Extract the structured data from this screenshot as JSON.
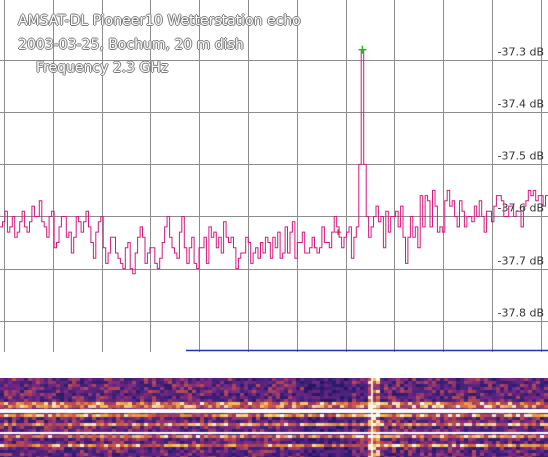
{
  "header": {
    "title": "AMSAT-DL Pioneer10 Wetterstation echo",
    "station": "2003-03-25, Bochum, 20 m dish",
    "frequency": "Frequency 2.3 GHz"
  },
  "colors": {
    "trace": "#d4187f",
    "grid": "#8c8c8c",
    "marker": "#22bb22",
    "baseline": "#2233aa",
    "axis_label": "#333333"
  },
  "chart_data": {
    "type": "line",
    "ylim": [
      -37.85,
      -37.2
    ],
    "y_ticks": [
      {
        "value": -37.3,
        "label": "-37.3 dB"
      },
      {
        "value": -37.4,
        "label": "-37.4 dB"
      },
      {
        "value": -37.5,
        "label": "-37.5 dB"
      },
      {
        "value": -37.6,
        "label": "-37.6 dB"
      },
      {
        "value": -37.7,
        "label": "-37.7 dB"
      },
      {
        "value": -37.8,
        "label": "-37.8 dB"
      }
    ],
    "x_divisions": 11,
    "peak": {
      "index": 147,
      "value": -37.28
    },
    "series": [
      {
        "values": [
          -37.62,
          -37.61,
          -37.59,
          -37.63,
          -37.62,
          -37.6,
          -37.64,
          -37.63,
          -37.61,
          -37.59,
          -37.62,
          -37.63,
          -37.61,
          -37.58,
          -37.6,
          -37.6,
          -37.57,
          -37.61,
          -37.62,
          -37.64,
          -37.6,
          -37.59,
          -37.66,
          -37.65,
          -37.62,
          -37.6,
          -37.6,
          -37.64,
          -37.63,
          -37.67,
          -37.64,
          -37.6,
          -37.61,
          -37.63,
          -37.61,
          -37.59,
          -37.62,
          -37.65,
          -37.68,
          -37.63,
          -37.61,
          -37.6,
          -37.66,
          -37.69,
          -37.67,
          -37.64,
          -37.64,
          -37.67,
          -37.68,
          -37.69,
          -37.7,
          -37.66,
          -37.65,
          -37.7,
          -37.71,
          -37.67,
          -37.64,
          -37.62,
          -37.64,
          -37.69,
          -37.67,
          -37.66,
          -37.66,
          -37.69,
          -37.7,
          -37.68,
          -37.65,
          -37.62,
          -37.6,
          -37.64,
          -37.66,
          -37.67,
          -37.68,
          -37.63,
          -37.6,
          -37.66,
          -37.69,
          -37.66,
          -37.64,
          -37.69,
          -37.7,
          -37.66,
          -37.66,
          -37.64,
          -37.69,
          -37.62,
          -37.64,
          -37.63,
          -37.66,
          -37.64,
          -37.67,
          -37.61,
          -37.64,
          -37.65,
          -37.64,
          -37.66,
          -37.7,
          -37.68,
          -37.67,
          -37.67,
          -37.64,
          -37.65,
          -37.69,
          -37.67,
          -37.66,
          -37.68,
          -37.65,
          -37.67,
          -37.64,
          -37.65,
          -37.68,
          -37.64,
          -37.66,
          -37.63,
          -37.68,
          -37.67,
          -37.62,
          -37.67,
          -37.63,
          -37.61,
          -37.68,
          -37.65,
          -37.65,
          -37.63,
          -37.67,
          -37.67,
          -37.66,
          -37.64,
          -37.66,
          -37.67,
          -37.66,
          -37.62,
          -37.65,
          -37.65,
          -37.66,
          -37.63,
          -37.6,
          -37.62,
          -37.64,
          -37.66,
          -37.64,
          -37.63,
          -37.62,
          -37.68,
          -37.64,
          -37.62,
          -37.5,
          -37.28,
          -37.5,
          -37.6,
          -37.64,
          -37.62,
          -37.6,
          -37.58,
          -37.61,
          -37.6,
          -37.66,
          -37.59,
          -37.63,
          -37.6,
          -37.6,
          -37.59,
          -37.62,
          -37.58,
          -37.64,
          -37.69,
          -37.64,
          -37.6,
          -37.64,
          -37.62,
          -37.66,
          -37.56,
          -37.62,
          -37.56,
          -37.57,
          -37.62,
          -37.55,
          -37.58,
          -37.63,
          -37.62,
          -37.63,
          -37.57,
          -37.55,
          -37.58,
          -37.57,
          -37.6,
          -37.62,
          -37.57,
          -37.59,
          -37.62,
          -37.6,
          -37.6,
          -37.61,
          -37.58,
          -37.6,
          -37.57,
          -37.6,
          -37.63,
          -37.59,
          -37.59,
          -37.61,
          -37.58,
          -37.56,
          -37.56,
          -37.57,
          -37.6,
          -37.6,
          -37.58,
          -37.58,
          -37.6,
          -37.59,
          -37.59,
          -37.62,
          -37.58,
          -37.57,
          -37.55,
          -37.56,
          -37.55,
          -37.57,
          -37.56,
          -37.56,
          -37.58,
          -37.56
        ]
      }
    ]
  }
}
